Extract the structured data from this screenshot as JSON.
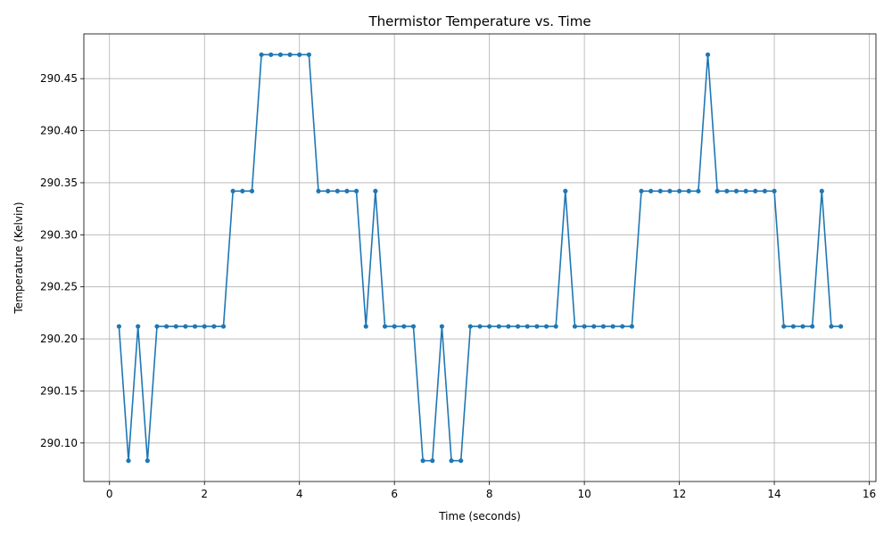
{
  "chart_data": {
    "type": "line",
    "title": "Thermistor Temperature vs. Time",
    "xlabel": "Time (seconds)",
    "ylabel": "Temperature (Kelvin)",
    "xlim": [
      -0.54,
      16.14
    ],
    "ylim": [
      290.063,
      290.493
    ],
    "xticks": [
      0,
      2,
      4,
      6,
      8,
      10,
      12,
      14,
      16
    ],
    "xtick_labels": [
      "0",
      "2",
      "4",
      "6",
      "8",
      "10",
      "12",
      "14",
      "16"
    ],
    "yticks": [
      290.1,
      290.15,
      290.2,
      290.25,
      290.3,
      290.35,
      290.4,
      290.45
    ],
    "ytick_labels": [
      "290.10",
      "290.15",
      "290.20",
      "290.25",
      "290.30",
      "290.35",
      "290.40",
      "290.45"
    ],
    "grid": true,
    "color": "#1f77b4",
    "series": [
      {
        "x": [
          0.2,
          0.4,
          0.6,
          0.8,
          1.0,
          1.2,
          1.4,
          1.6,
          1.8,
          2.0,
          2.2,
          2.4,
          2.6,
          2.8,
          3.0,
          3.2,
          3.4,
          3.6,
          3.8,
          4.0,
          4.2,
          4.4,
          4.6,
          4.8,
          5.0,
          5.2,
          5.4,
          5.6,
          5.8,
          6.0,
          6.2,
          6.4,
          6.6,
          6.8,
          7.0,
          7.2,
          7.4,
          7.6,
          7.8,
          8.0,
          8.2,
          8.4,
          8.6,
          8.8,
          9.0,
          9.2,
          9.4,
          9.6,
          9.8,
          10.0,
          10.2,
          10.4,
          10.6,
          10.8,
          11.0,
          11.2,
          11.4,
          11.6,
          11.8,
          12.0,
          12.2,
          12.4,
          12.6,
          12.8,
          13.0,
          13.2,
          13.4,
          13.6,
          13.8,
          14.0,
          14.2,
          14.4,
          14.6,
          14.8,
          15.0,
          15.2,
          15.4
        ],
        "y": [
          290.212,
          290.083,
          290.212,
          290.083,
          290.212,
          290.212,
          290.212,
          290.212,
          290.212,
          290.212,
          290.212,
          290.212,
          290.342,
          290.342,
          290.342,
          290.473,
          290.473,
          290.473,
          290.473,
          290.473,
          290.473,
          290.342,
          290.342,
          290.342,
          290.342,
          290.342,
          290.212,
          290.342,
          290.212,
          290.212,
          290.212,
          290.212,
          290.083,
          290.083,
          290.212,
          290.083,
          290.083,
          290.212,
          290.212,
          290.212,
          290.212,
          290.212,
          290.212,
          290.212,
          290.212,
          290.212,
          290.212,
          290.342,
          290.212,
          290.212,
          290.212,
          290.212,
          290.212,
          290.212,
          290.212,
          290.342,
          290.342,
          290.342,
          290.342,
          290.342,
          290.342,
          290.342,
          290.473,
          290.342,
          290.342,
          290.342,
          290.342,
          290.342,
          290.342,
          290.342,
          290.212,
          290.212,
          290.212,
          290.212,
          290.342,
          290.212,
          290.212
        ]
      }
    ]
  }
}
